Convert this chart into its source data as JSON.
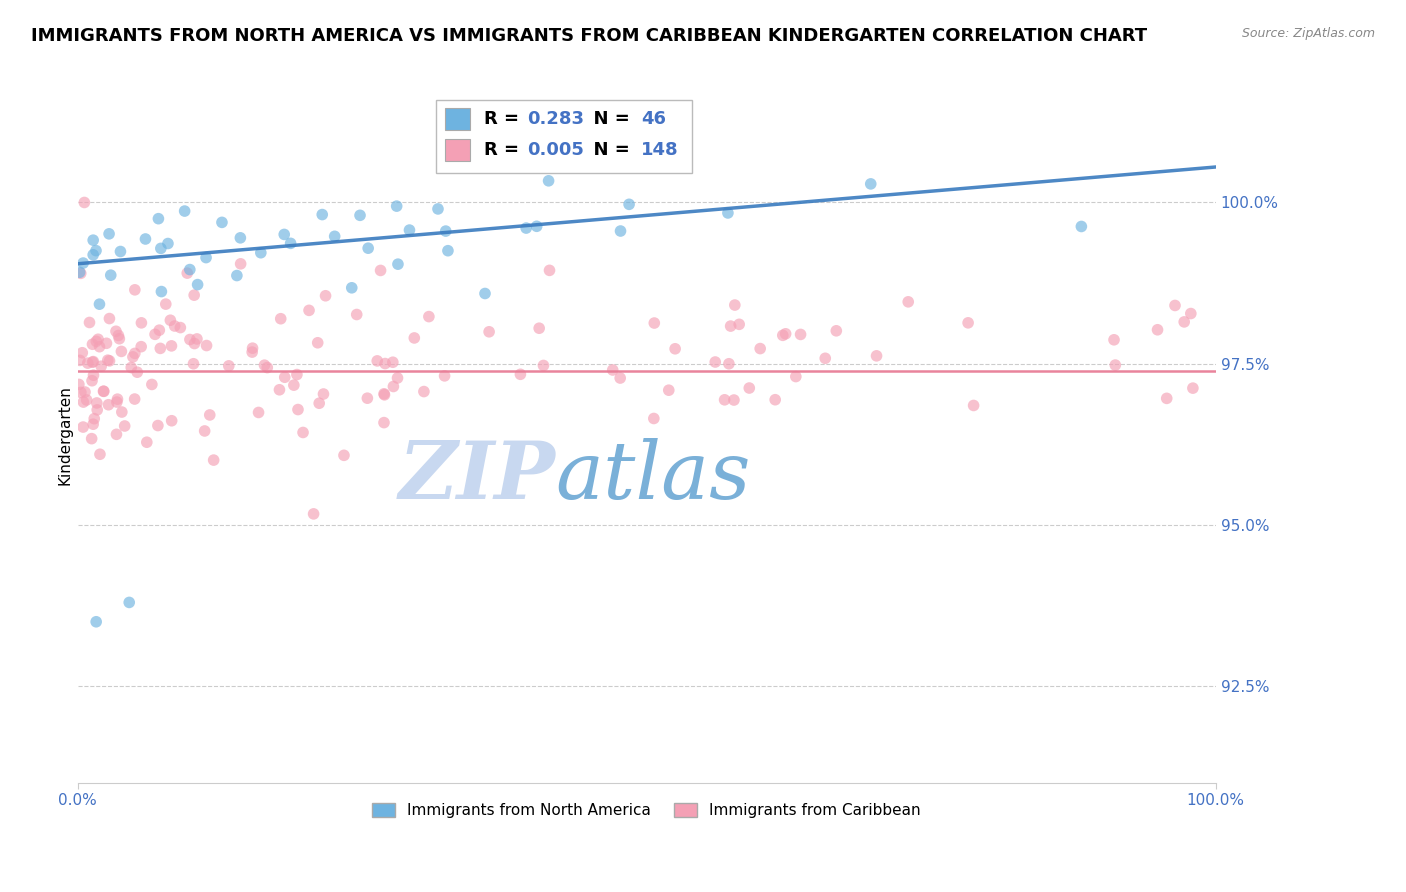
{
  "title": "IMMIGRANTS FROM NORTH AMERICA VS IMMIGRANTS FROM CARIBBEAN KINDERGARTEN CORRELATION CHART",
  "source": "Source: ZipAtlas.com",
  "ylabel": "Kindergarten",
  "xlim": [
    0.0,
    100.0
  ],
  "ylim": [
    91.0,
    101.8
  ],
  "yticks": [
    92.5,
    95.0,
    97.5,
    100.0
  ],
  "ytick_labels": [
    "92.5%",
    "95.0%",
    "97.5%",
    "100.0%"
  ],
  "xticks": [
    0.0,
    100.0
  ],
  "xtick_labels": [
    "0.0%",
    "100.0%"
  ],
  "blue_R": 0.283,
  "blue_N": 46,
  "pink_R": 0.005,
  "pink_N": 148,
  "blue_color": "#6eb3e0",
  "pink_color": "#f4a0b5",
  "trend_blue_color": "#3a7bbf",
  "trend_pink_color": "#e87d97",
  "grid_color": "#cccccc",
  "axis_color": "#4472c4",
  "watermark_zip_color": "#c8d8f0",
  "watermark_atlas_color": "#7ab0d8",
  "legend_blue_label": "Immigrants from North America",
  "legend_pink_label": "Immigrants from Caribbean",
  "pink_hline_y": 97.38,
  "blue_trend_x0": 0.0,
  "blue_trend_y0": 99.05,
  "blue_trend_x1": 100.0,
  "blue_trend_y1": 100.55,
  "background_color": "#ffffff",
  "title_fontsize": 13,
  "axis_label_fontsize": 11,
  "tick_fontsize": 11,
  "marker_size": 70,
  "alpha": 0.65
}
